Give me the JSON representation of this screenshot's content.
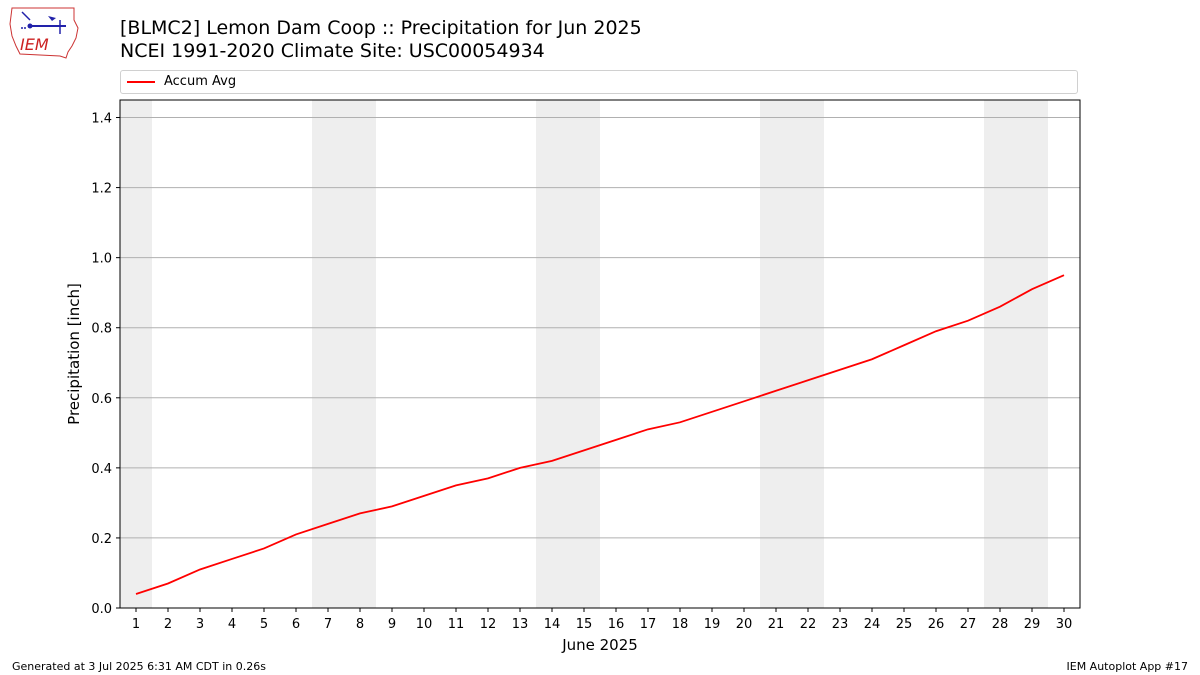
{
  "header": {
    "title_line1": "[BLMC2] Lemon Dam Coop :: Precipitation for Jun 2025",
    "title_line2": "NCEI 1991-2020 Climate Site: USC00054934",
    "logo_text": "IEM"
  },
  "footer": {
    "generated": "Generated at 3 Jul 2025 6:31 AM CDT in 0.26s",
    "app": "IEM Autoplot App #17"
  },
  "chart_data": {
    "type": "line",
    "xlabel": "June 2025",
    "ylabel": "Precipitation [inch]",
    "x": [
      1,
      2,
      3,
      4,
      5,
      6,
      7,
      8,
      9,
      10,
      11,
      12,
      13,
      14,
      15,
      16,
      17,
      18,
      19,
      20,
      21,
      22,
      23,
      24,
      25,
      26,
      27,
      28,
      29,
      30
    ],
    "xlim": [
      0.5,
      30.5
    ],
    "ylim": [
      0,
      1.45
    ],
    "yticks": [
      0.0,
      0.2,
      0.4,
      0.6,
      0.8,
      1.0,
      1.2,
      1.4
    ],
    "ytick_labels": [
      "0.0",
      "0.2",
      "0.4",
      "0.6",
      "0.8",
      "1.0",
      "1.2",
      "1.4"
    ],
    "grid": "horizontal",
    "legend_position": "top",
    "weekend_shading": [
      [
        0.5,
        1.5
      ],
      [
        6.5,
        8.5
      ],
      [
        13.5,
        15.5
      ],
      [
        20.5,
        22.5
      ],
      [
        27.5,
        29.5
      ]
    ],
    "series": [
      {
        "name": "Accum Avg",
        "color": "#ff0000",
        "values": [
          0.04,
          0.07,
          0.11,
          0.14,
          0.17,
          0.21,
          0.24,
          0.27,
          0.29,
          0.32,
          0.35,
          0.37,
          0.4,
          0.42,
          0.45,
          0.48,
          0.51,
          0.53,
          0.56,
          0.59,
          0.62,
          0.65,
          0.68,
          0.71,
          0.75,
          0.79,
          0.82,
          0.86,
          0.91,
          0.95
        ]
      }
    ]
  }
}
